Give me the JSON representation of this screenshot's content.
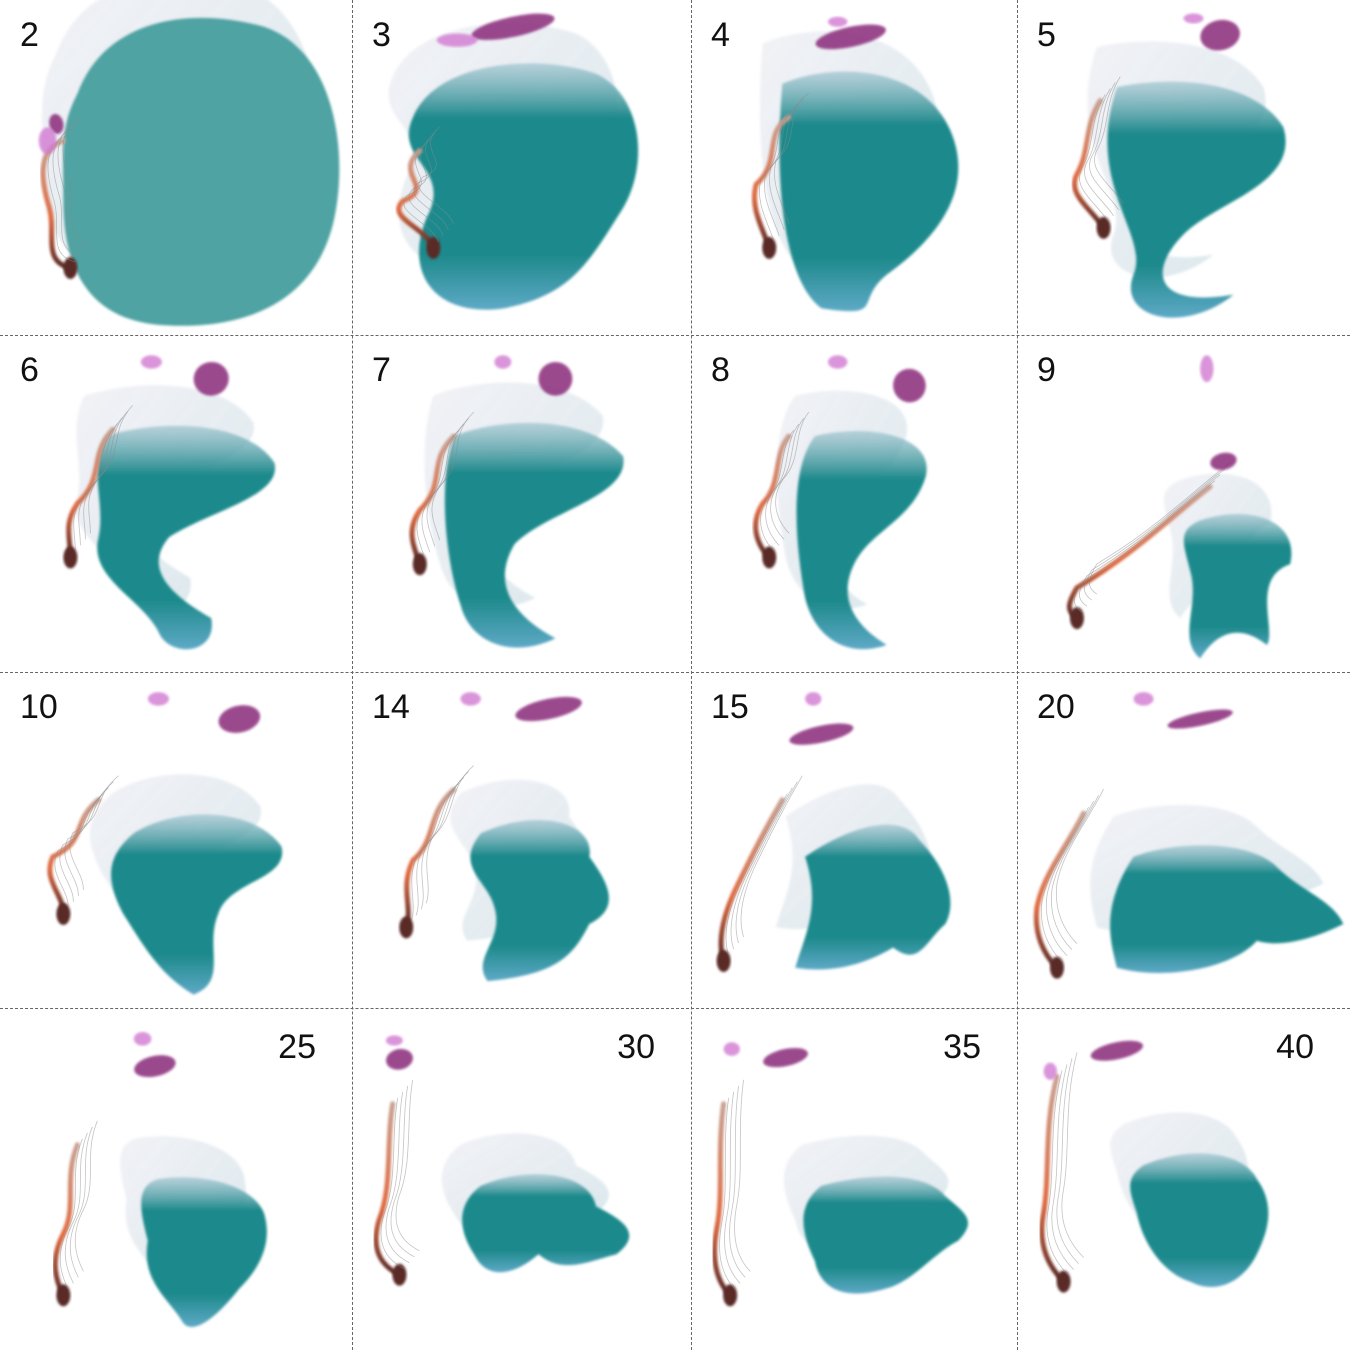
{
  "colors": {
    "main": "#1e8a8c",
    "main_light": "#5ea9c6",
    "fringe": "#8ab7c4",
    "magenta": "#8a2a7a",
    "pink": "#d27ad2",
    "orange": "#e06a40",
    "dark": "#5a2a26",
    "gray": "#8a8a8a",
    "divider": "#666666"
  },
  "panels": [
    {
      "label": "2",
      "label_pos": "top-left"
    },
    {
      "label": "3",
      "label_pos": "top-left"
    },
    {
      "label": "4",
      "label_pos": "top-left"
    },
    {
      "label": "5",
      "label_pos": "top-left"
    },
    {
      "label": "6",
      "label_pos": "top-left"
    },
    {
      "label": "7",
      "label_pos": "top-left"
    },
    {
      "label": "8",
      "label_pos": "top-left"
    },
    {
      "label": "9",
      "label_pos": "top-left"
    },
    {
      "label": "10",
      "label_pos": "top-left"
    },
    {
      "label": "14",
      "label_pos": "top-left"
    },
    {
      "label": "15",
      "label_pos": "top-left"
    },
    {
      "label": "20",
      "label_pos": "top-left"
    },
    {
      "label": "25",
      "label_pos": "top-right"
    },
    {
      "label": "30",
      "label_pos": "top-right"
    },
    {
      "label": "35",
      "label_pos": "top-right"
    },
    {
      "label": "40",
      "label_pos": "top-right"
    }
  ]
}
